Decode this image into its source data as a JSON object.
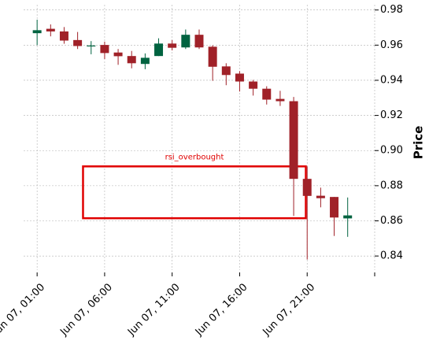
{
  "chart_data": {
    "type": "candlestick",
    "ylabel": "Price",
    "ylim": [
      0.832,
      0.983
    ],
    "yticks": [
      0.84,
      0.86,
      0.88,
      0.9,
      0.92,
      0.94,
      0.96,
      0.98
    ],
    "ytick_labels": [
      "0.84",
      "0.86",
      "0.88",
      "0.90",
      "0.92",
      "0.94",
      "0.96",
      "0.98"
    ],
    "xtick_labels": [
      "Jun 07, 01:00",
      "Jun 07, 06:00",
      "Jun 07, 11:00",
      "Jun 07, 16:00",
      "Jun 07, 21:00",
      ""
    ],
    "xtick_positions": [
      0,
      5,
      10,
      15,
      20,
      25
    ],
    "x_range": [
      -1,
      25
    ],
    "grid": true,
    "colors": {
      "up": "#006340",
      "down": "#a02128",
      "grid": "#b0b0b0",
      "annotation": "#e00000"
    },
    "candles": [
      {
        "open": 0.9668,
        "high": 0.9745,
        "low": 0.96,
        "close": 0.9685
      },
      {
        "open": 0.9693,
        "high": 0.9718,
        "low": 0.965,
        "close": 0.9678
      },
      {
        "open": 0.9678,
        "high": 0.9703,
        "low": 0.9608,
        "close": 0.9626
      },
      {
        "open": 0.9629,
        "high": 0.9675,
        "low": 0.9578,
        "close": 0.9595
      },
      {
        "open": 0.9594,
        "high": 0.9623,
        "low": 0.9548,
        "close": 0.9598
      },
      {
        "open": 0.9601,
        "high": 0.962,
        "low": 0.9521,
        "close": 0.9555
      },
      {
        "open": 0.9558,
        "high": 0.9578,
        "low": 0.9488,
        "close": 0.9537
      },
      {
        "open": 0.9538,
        "high": 0.9567,
        "low": 0.9468,
        "close": 0.9497
      },
      {
        "open": 0.9493,
        "high": 0.9553,
        "low": 0.9463,
        "close": 0.9528
      },
      {
        "open": 0.9538,
        "high": 0.9639,
        "low": 0.9538,
        "close": 0.9609
      },
      {
        "open": 0.9609,
        "high": 0.9629,
        "low": 0.957,
        "close": 0.9585
      },
      {
        "open": 0.9587,
        "high": 0.9689,
        "low": 0.9578,
        "close": 0.9659
      },
      {
        "open": 0.9659,
        "high": 0.9689,
        "low": 0.9578,
        "close": 0.9587
      },
      {
        "open": 0.9591,
        "high": 0.9599,
        "low": 0.9397,
        "close": 0.9477
      },
      {
        "open": 0.9479,
        "high": 0.9497,
        "low": 0.9372,
        "close": 0.943
      },
      {
        "open": 0.9438,
        "high": 0.9452,
        "low": 0.9336,
        "close": 0.9393
      },
      {
        "open": 0.9393,
        "high": 0.9402,
        "low": 0.9313,
        "close": 0.9352
      },
      {
        "open": 0.9352,
        "high": 0.9366,
        "low": 0.9262,
        "close": 0.929
      },
      {
        "open": 0.9294,
        "high": 0.934,
        "low": 0.9254,
        "close": 0.9281
      },
      {
        "open": 0.9281,
        "high": 0.9305,
        "low": 0.8628,
        "close": 0.8839
      },
      {
        "open": 0.8839,
        "high": 0.891,
        "low": 0.838,
        "close": 0.8742
      },
      {
        "open": 0.8743,
        "high": 0.8789,
        "low": 0.8677,
        "close": 0.8729
      },
      {
        "open": 0.8736,
        "high": 0.8736,
        "low": 0.8514,
        "close": 0.8619
      },
      {
        "open": 0.8614,
        "high": 0.8733,
        "low": 0.8509,
        "close": 0.8631
      }
    ],
    "annotations": [
      {
        "label": "rsi_overbought",
        "x_start": 3.4,
        "x_end": 19.9,
        "y_low": 0.8615,
        "y_high": 0.891
      }
    ]
  }
}
